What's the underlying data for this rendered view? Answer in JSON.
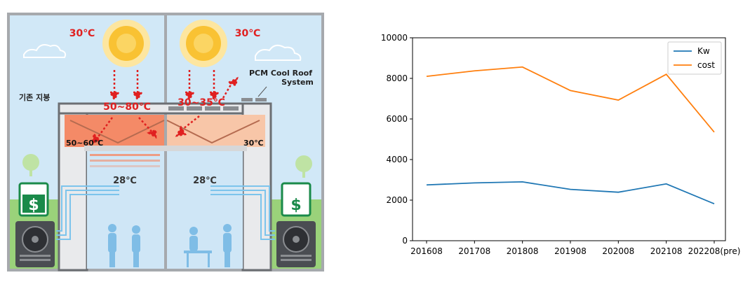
{
  "illustration": {
    "left_panel": {
      "sun_temp": "30℃",
      "label_existing_roof": "기존 지붕",
      "roof_surface_temp": "50~80℃",
      "attic_temp": "50~60℃",
      "room_temp": "28℃"
    },
    "right_panel": {
      "sun_temp": "30℃",
      "system_label_line1": "PCM Cool Roof",
      "system_label_line2": "System",
      "roof_surface_temp": "30~35℃",
      "attic_temp": "30℃",
      "room_temp": "28℃"
    },
    "money_symbol": "$",
    "colors": {
      "sky": "#cfe6f6",
      "ground": "#8fcf6e",
      "frame": "#a6a9ad",
      "hot": "#f26b4e",
      "cool": "#f7b089",
      "red_text": "#e02020",
      "money_green": "#1a8a4a"
    }
  },
  "chart_data": {
    "type": "line",
    "categories": [
      "201608",
      "201708",
      "201808",
      "201908",
      "202008",
      "202108",
      "202208(pre)"
    ],
    "series": [
      {
        "name": "Kw",
        "color": "#1f77b4",
        "values": [
          2750,
          2850,
          2900,
          2530,
          2390,
          2800,
          1820
        ]
      },
      {
        "name": "cost",
        "color": "#ff7f0e",
        "values": [
          8100,
          8370,
          8560,
          7400,
          6930,
          8200,
          5350
        ]
      }
    ],
    "ylim": [
      0,
      10000
    ],
    "yticks": [
      0,
      2000,
      4000,
      6000,
      8000,
      10000
    ],
    "legend_position": "top-right",
    "grid": false
  }
}
